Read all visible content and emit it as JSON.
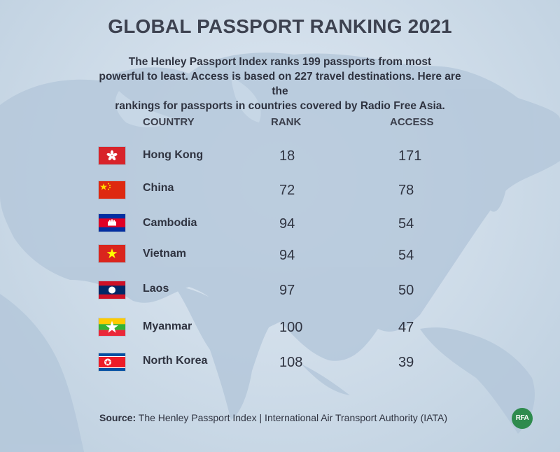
{
  "title": "GLOBAL PASSPORT RANKING 2021",
  "intro_lines": [
    "The Henley Passport Index ranks 199 passports from most",
    "powerful to least. Access is based on 227 travel destinations. Here are the",
    "rankings for passports in countries covered by Radio Free Asia."
  ],
  "headers": {
    "country": "COUNTRY",
    "rank": "RANK",
    "access": "ACCESS"
  },
  "rows": [
    {
      "country": "Hong Kong",
      "rank": "18",
      "access": "171",
      "flag": "hong-kong-flag"
    },
    {
      "country": "China",
      "rank": "72",
      "access": "78",
      "flag": "china-flag"
    },
    {
      "country": "Cambodia",
      "rank": "94",
      "access": "54",
      "flag": "cambodia-flag"
    },
    {
      "country": "Vietnam",
      "rank": "94",
      "access": "54",
      "flag": "vietnam-flag"
    },
    {
      "country": "Laos",
      "rank": "97",
      "access": "50",
      "flag": "laos-flag"
    },
    {
      "country": "Myanmar",
      "rank": "100",
      "access": "47",
      "flag": "myanmar-flag"
    },
    {
      "country": "North Korea",
      "rank": "108",
      "access": "39",
      "flag": "north-korea-flag"
    }
  ],
  "source": {
    "label": "Source:",
    "text": "The Henley Passport Index | International Air Transport Authority (IATA)"
  },
  "logo_text": "RFA",
  "colors": {
    "title": "#3d4250",
    "text": "#2f3340",
    "map_land": "#b4c7da",
    "logo": "#2e8b4e"
  }
}
